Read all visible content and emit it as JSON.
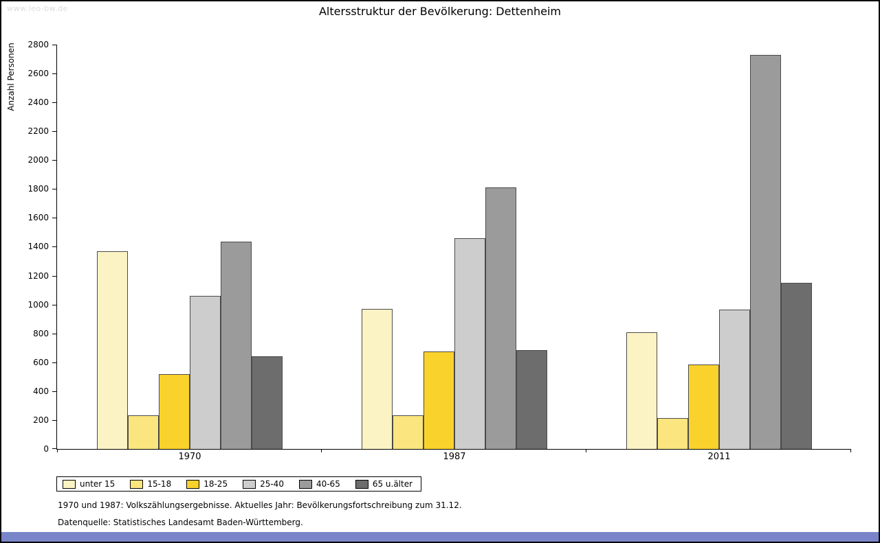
{
  "watermark": "www.leo-bw.de",
  "chart_data": {
    "type": "bar",
    "title": "Altersstruktur der Bevölkerung: Dettenheim",
    "xlabel": "",
    "ylabel": "Anzahl Personen",
    "ylim": [
      0,
      2800
    ],
    "ytick_step": 200,
    "grid": false,
    "legend_position": "bottom-left",
    "categories": [
      "1970",
      "1987",
      "2011"
    ],
    "series": [
      {
        "name": "unter 15",
        "color": "#FCF3C4",
        "values": [
          1370,
          970,
          810
        ]
      },
      {
        "name": "15-18",
        "color": "#FAE57E",
        "values": [
          235,
          235,
          215
        ]
      },
      {
        "name": "18-25",
        "color": "#FAD22C",
        "values": [
          520,
          675,
          585
        ]
      },
      {
        "name": "25-40",
        "color": "#CDCDCD",
        "values": [
          1060,
          1460,
          965
        ]
      },
      {
        "name": "40-65",
        "color": "#9B9B9B",
        "values": [
          1435,
          1810,
          2730
        ]
      },
      {
        "name": "65 u.älter",
        "color": "#6D6D6D",
        "values": [
          640,
          685,
          1150
        ]
      }
    ]
  },
  "footnotes": [
    "1970 und 1987: Volkszählungsergebnisse. Aktuelles Jahr: Bevölkerungsfortschreibung zum 31.12.",
    "Datenquelle: Statistisches Landesamt Baden-Württemberg."
  ],
  "colors": {
    "bottom_bar": "#7A85C9",
    "axis": "#000000",
    "watermark": "#DCDCDC"
  }
}
